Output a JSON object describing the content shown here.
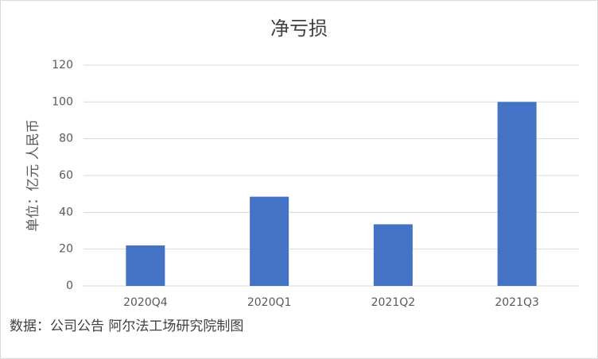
{
  "chart_data": {
    "type": "bar",
    "title": "净亏损",
    "y_label": "单位：亿元 人民币",
    "source": "数据：公司公告 阿尔法工场研究院制图",
    "categories": [
      "2020Q4",
      "2020Q1",
      "2021Q2",
      "2021Q3"
    ],
    "values": [
      22,
      48.5,
      33.5,
      100
    ],
    "color": "#4472c4",
    "ylim": [
      0,
      120
    ],
    "yticks": [
      0,
      20,
      40,
      60,
      80,
      100,
      120
    ],
    "grid": true
  }
}
